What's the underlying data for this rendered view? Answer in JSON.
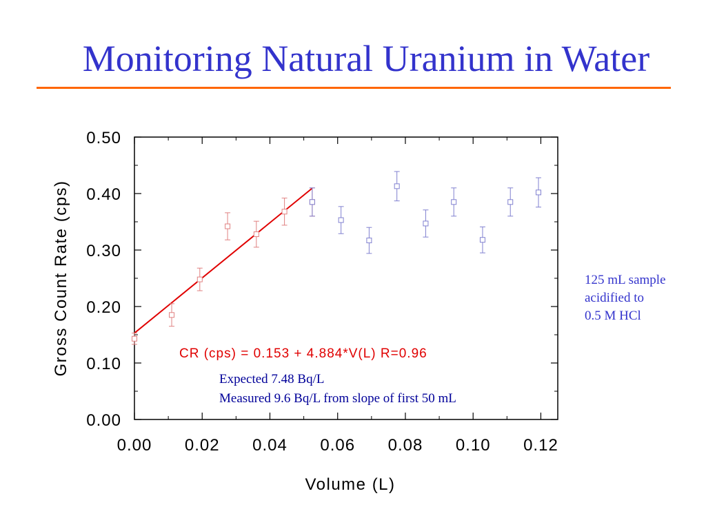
{
  "slide": {
    "title": "Monitoring Natural Uranium in Water",
    "side_note": [
      "125 mL sample",
      "acidified to",
      "0.5 M HCl"
    ]
  },
  "colors": {
    "title": "#3333cc",
    "rule": "#ff6600",
    "fit_line": "#e00000",
    "series_first_50ml": "#e08080",
    "series_remaining": "#8080d0",
    "notes": "#000099"
  },
  "chart_data": {
    "type": "scatter",
    "xlabel": "Volume (L)",
    "ylabel": "Gross Count Rate (cps)",
    "xlim": [
      0,
      0.125
    ],
    "ylim": [
      0,
      0.5
    ],
    "xticks": [
      "0.00",
      "0.02",
      "0.04",
      "0.06",
      "0.08",
      "0.10",
      "0.12"
    ],
    "yticks": [
      "0.00",
      "0.10",
      "0.20",
      "0.30",
      "0.40",
      "0.50"
    ],
    "grid": false,
    "series": [
      {
        "marker": "open-square",
        "color": "#e08080",
        "x": [
          0.0,
          0.011,
          0.0193,
          0.0275,
          0.036,
          0.0443,
          0.0525
        ],
        "y": [
          0.143,
          0.185,
          0.248,
          0.342,
          0.328,
          0.368,
          0.385
        ],
        "err": [
          0.01,
          0.02,
          0.02,
          0.024,
          0.023,
          0.024,
          0.025
        ]
      },
      {
        "marker": "open-square",
        "color": "#8080d0",
        "x": [
          0.0525,
          0.061,
          0.0693,
          0.0775,
          0.086,
          0.0943,
          0.1028,
          0.111,
          0.1193
        ],
        "y": [
          0.385,
          0.353,
          0.317,
          0.413,
          0.347,
          0.385,
          0.318,
          0.385,
          0.402
        ],
        "err": [
          0.025,
          0.024,
          0.023,
          0.026,
          0.024,
          0.025,
          0.023,
          0.025,
          0.026
        ]
      }
    ],
    "fit_line": {
      "intercept": 0.153,
      "slope": 4.884,
      "x_range": [
        0,
        0.0525
      ],
      "color": "#e00000"
    },
    "annotations": {
      "equation": "CR (cps) = 0.153 + 4.884*V(L) R=0.96",
      "notes": [
        "Expected 7.48 Bq/L",
        "Measured 9.6 Bq/L from slope of first 50 mL"
      ]
    }
  }
}
